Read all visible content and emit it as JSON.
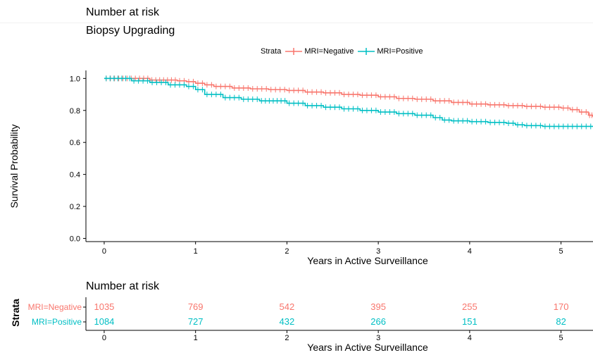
{
  "header": {
    "crop_label": "Number at risk"
  },
  "colors": {
    "negative": "#f8766d",
    "positive": "#00bfc4",
    "axis": "#000000"
  },
  "chart_data": [
    {
      "type": "line",
      "title": "Biopsy Upgrading",
      "xlabel": "Years in Active Surveillance",
      "ylabel": "Survival Probability",
      "xlim": [
        -0.2,
        5.35
      ],
      "ylim": [
        -0.02,
        1.05
      ],
      "xticks": [
        "0",
        "1",
        "2",
        "3",
        "4",
        "5"
      ],
      "yticks": [
        "0.0",
        "0.2",
        "0.4",
        "0.6",
        "0.8",
        "1.0"
      ],
      "legend": {
        "title": "Strata",
        "position": "top"
      },
      "grid": false,
      "series": [
        {
          "name": "MRI=Negative",
          "color_key": "negative",
          "x": [
            0,
            0.5,
            0.8,
            0.9,
            1.0,
            1.1,
            1.2,
            1.4,
            1.6,
            1.8,
            2.0,
            2.2,
            2.4,
            2.6,
            2.8,
            3.0,
            3.2,
            3.4,
            3.6,
            3.8,
            4.0,
            4.2,
            4.4,
            4.6,
            4.8,
            5.0,
            5.1,
            5.2,
            5.3,
            5.35
          ],
          "y": [
            1.0,
            0.99,
            0.985,
            0.98,
            0.97,
            0.96,
            0.95,
            0.94,
            0.935,
            0.93,
            0.925,
            0.915,
            0.91,
            0.9,
            0.895,
            0.885,
            0.875,
            0.87,
            0.86,
            0.85,
            0.84,
            0.835,
            0.83,
            0.825,
            0.82,
            0.815,
            0.805,
            0.79,
            0.77,
            0.76
          ]
        },
        {
          "name": "MRI=Positive",
          "color_key": "positive",
          "x": [
            0,
            0.3,
            0.5,
            0.7,
            0.9,
            1.0,
            1.1,
            1.3,
            1.5,
            1.7,
            2.0,
            2.2,
            2.4,
            2.6,
            2.8,
            3.0,
            3.2,
            3.4,
            3.6,
            3.7,
            3.8,
            4.0,
            4.2,
            4.4,
            4.5,
            4.6,
            4.8,
            5.0,
            5.2,
            5.35
          ],
          "y": [
            1.0,
            0.985,
            0.975,
            0.96,
            0.95,
            0.93,
            0.9,
            0.88,
            0.87,
            0.86,
            0.845,
            0.83,
            0.82,
            0.81,
            0.8,
            0.79,
            0.78,
            0.77,
            0.755,
            0.74,
            0.735,
            0.73,
            0.725,
            0.72,
            0.71,
            0.705,
            0.7,
            0.7,
            0.7,
            0.7
          ]
        }
      ]
    },
    {
      "type": "table",
      "title": "Number at risk",
      "xlabel": "Years in Active Surveillance",
      "ylabel": "Strata",
      "xticks": [
        "0",
        "1",
        "2",
        "3",
        "4",
        "5"
      ],
      "rows": [
        {
          "name": "MRI=Negative",
          "color_key": "negative",
          "values": [
            "1035",
            "769",
            "542",
            "395",
            "255",
            "170"
          ]
        },
        {
          "name": "MRI=Positive",
          "color_key": "positive",
          "values": [
            "1084",
            "727",
            "432",
            "266",
            "151",
            "82"
          ]
        }
      ]
    }
  ]
}
